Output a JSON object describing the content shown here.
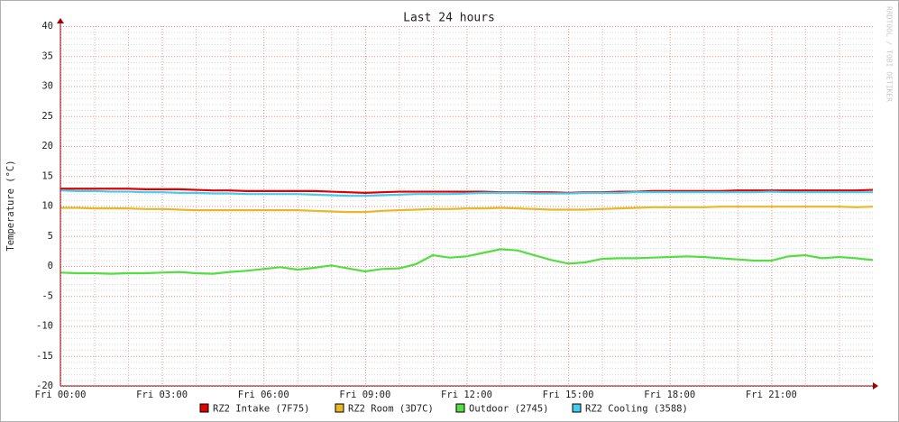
{
  "chart_data": {
    "type": "line",
    "title": "Last 24 hours",
    "watermark": "RRDTOOL / TOBI OETIKER",
    "y_label": "Temperature (°C)",
    "x": [
      0,
      0.5,
      1,
      1.5,
      2,
      2.5,
      3,
      3.5,
      4,
      4.5,
      5,
      5.5,
      6,
      6.5,
      7,
      7.5,
      8,
      8.5,
      9,
      9.5,
      10,
      10.5,
      11,
      11.5,
      12,
      12.5,
      13,
      13.5,
      14,
      14.5,
      15,
      15.5,
      16,
      16.5,
      17,
      17.5,
      18,
      18.5,
      19,
      19.5,
      20,
      20.5,
      21,
      21.5,
      22,
      22.5,
      23,
      23.5,
      24
    ],
    "xlim": [
      0,
      24
    ],
    "xticks": [
      {
        "value": 0,
        "label": "Fri 00:00"
      },
      {
        "value": 3,
        "label": "Fri 03:00"
      },
      {
        "value": 6,
        "label": "Fri 06:00"
      },
      {
        "value": 9,
        "label": "Fri 09:00"
      },
      {
        "value": 12,
        "label": "Fri 12:00"
      },
      {
        "value": 15,
        "label": "Fri 15:00"
      },
      {
        "value": 18,
        "label": "Fri 18:00"
      },
      {
        "value": 21,
        "label": "Fri 21:00"
      }
    ],
    "xminorticks": [
      1,
      2,
      4,
      5,
      7,
      8,
      10,
      11,
      13,
      14,
      16,
      17,
      19,
      20,
      22,
      23
    ],
    "ylim": [
      -20,
      40
    ],
    "yticks": [
      40,
      35,
      30,
      25,
      20,
      15,
      10,
      5,
      0,
      -5,
      -10,
      -15,
      -20
    ],
    "yminorticks": [
      -19,
      -18,
      -17,
      -16,
      -14,
      -13,
      -12,
      -11,
      -9,
      -8,
      -7,
      -6,
      -4,
      -3,
      -2,
      -1,
      1,
      2,
      3,
      4,
      6,
      7,
      8,
      9,
      11,
      12,
      13,
      14,
      16,
      17,
      18,
      19,
      21,
      22,
      23,
      24,
      26,
      27,
      28,
      29,
      31,
      32,
      33,
      34,
      36,
      37,
      38,
      39
    ],
    "grid": true,
    "series": [
      {
        "name": "RZ2 Intake (7F75)",
        "color": "#e00000",
        "values": [
          12.9,
          12.9,
          12.9,
          12.9,
          12.9,
          12.8,
          12.8,
          12.8,
          12.7,
          12.6,
          12.6,
          12.5,
          12.5,
          12.5,
          12.5,
          12.5,
          12.4,
          12.3,
          12.2,
          12.3,
          12.4,
          12.4,
          12.4,
          12.4,
          12.4,
          12.4,
          12.3,
          12.3,
          12.3,
          12.3,
          12.2,
          12.3,
          12.3,
          12.4,
          12.4,
          12.5,
          12.5,
          12.5,
          12.5,
          12.5,
          12.6,
          12.6,
          12.6,
          12.6,
          12.6,
          12.6,
          12.6,
          12.6,
          12.7
        ]
      },
      {
        "name": "RZ2 Room (3D7C)",
        "color": "#e8b828",
        "values": [
          9.7,
          9.7,
          9.6,
          9.6,
          9.6,
          9.5,
          9.5,
          9.4,
          9.3,
          9.3,
          9.3,
          9.3,
          9.3,
          9.3,
          9.3,
          9.2,
          9.1,
          9.0,
          9.0,
          9.2,
          9.3,
          9.4,
          9.5,
          9.5,
          9.6,
          9.6,
          9.7,
          9.6,
          9.5,
          9.4,
          9.4,
          9.4,
          9.5,
          9.6,
          9.7,
          9.8,
          9.8,
          9.8,
          9.8,
          9.9,
          9.9,
          9.9,
          9.9,
          9.9,
          9.9,
          9.9,
          9.9,
          9.8,
          9.9
        ]
      },
      {
        "name": "Outdoor (2745)",
        "color": "#55dd44",
        "values": [
          -1.1,
          -1.2,
          -1.2,
          -1.3,
          -1.2,
          -1.2,
          -1.1,
          -1.0,
          -1.2,
          -1.3,
          -1.0,
          -0.8,
          -0.5,
          -0.2,
          -0.6,
          -0.3,
          0.1,
          -0.4,
          -0.9,
          -0.5,
          -0.4,
          0.3,
          1.8,
          1.4,
          1.6,
          2.2,
          2.8,
          2.6,
          1.8,
          1.0,
          0.4,
          0.6,
          1.2,
          1.3,
          1.3,
          1.4,
          1.5,
          1.6,
          1.5,
          1.3,
          1.1,
          0.9,
          0.9,
          1.6,
          1.8,
          1.3,
          1.5,
          1.3,
          1.0
        ]
      },
      {
        "name": "RZ2 Cooling (3588)",
        "color": "#44ccee",
        "values": [
          12.6,
          12.5,
          12.5,
          12.4,
          12.4,
          12.3,
          12.3,
          12.2,
          12.2,
          12.1,
          12.1,
          12.0,
          12.0,
          12.0,
          12.0,
          11.9,
          11.8,
          11.7,
          11.7,
          11.8,
          11.9,
          12.0,
          12.0,
          12.0,
          12.1,
          12.2,
          12.2,
          12.2,
          12.1,
          12.1,
          12.1,
          12.2,
          12.2,
          12.2,
          12.3,
          12.3,
          12.3,
          12.3,
          12.3,
          12.3,
          12.3,
          12.3,
          12.4,
          12.3,
          12.3,
          12.3,
          12.3,
          12.3,
          12.3
        ]
      }
    ]
  }
}
